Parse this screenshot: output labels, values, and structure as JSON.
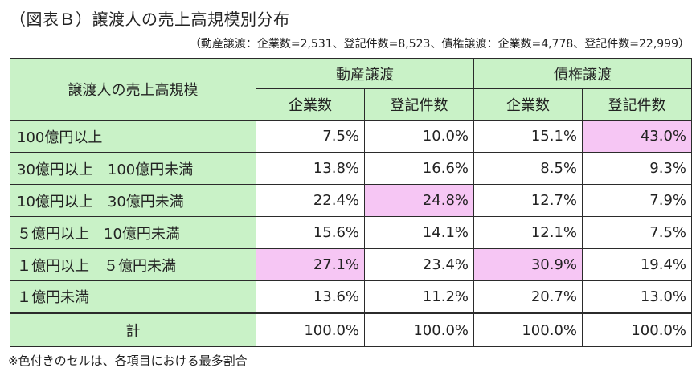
{
  "title": "（図表Ｂ）譲渡人の売上高規模別分布",
  "subtitle": "（動産譲渡：企業数=2,531、登記件数=8,523、債権譲渡：企業数=4,778、登記件数=22,999）",
  "header": {
    "row_label": "譲渡人の売上高規模",
    "group1": "動産譲渡",
    "group2": "債権譲渡",
    "col1": "企業数",
    "col2": "登記件数",
    "col3": "企業数",
    "col4": "登記件数"
  },
  "rows": [
    {
      "label": "100億円以上",
      "values": [
        "7.5%",
        "10.0%",
        "15.1%",
        "43.0%"
      ]
    },
    {
      "label": "30億円以上　100億円未満",
      "values": [
        "13.8%",
        "16.6%",
        "8.5%",
        "9.3%"
      ]
    },
    {
      "label": "10億円以上　30億円未満",
      "values": [
        "22.4%",
        "24.8%",
        "12.7%",
        "7.9%"
      ]
    },
    {
      "label": "５億円以上　10億円未満",
      "values": [
        "15.6%",
        "14.1%",
        "12.1%",
        "7.5%"
      ]
    },
    {
      "label": "１億円以上　５億円未満",
      "values": [
        "27.1%",
        "23.4%",
        "30.9%",
        "19.4%"
      ]
    },
    {
      "label": "１億円未満",
      "values": [
        "13.6%",
        "11.2%",
        "20.7%",
        "13.0%"
      ]
    }
  ],
  "total": {
    "label": "計",
    "values": [
      "100.0%",
      "100.0%",
      "100.0%",
      "100.0%"
    ]
  },
  "note": "※色付きのセルは、各項目における最多割合",
  "colors": {
    "header_bg": "#c9f2c7",
    "highlight_bg": "#f6c6f4"
  }
}
